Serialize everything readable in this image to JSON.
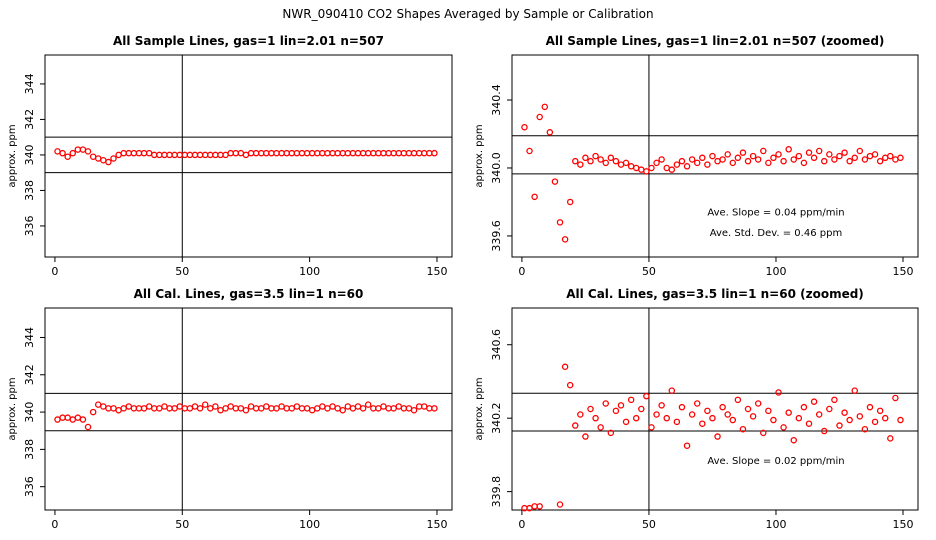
{
  "title": "NWR_090410  CO2 Shapes Averaged by Sample or Calibration",
  "chart_data": [
    {
      "type": "scatter",
      "title": "All Sample Lines, gas=1 lin=2.01 n=507",
      "y_label": "approx. ppm",
      "color": "#ff0000",
      "xlim": [
        -3.9,
        155.9
      ],
      "ylim": [
        334.25,
        345.63
      ],
      "xticks": [
        0,
        50,
        100,
        150
      ],
      "yticks": [
        336,
        338,
        340,
        342,
        344
      ],
      "hlines": [
        341,
        339
      ],
      "vline": 50,
      "annotations": [],
      "x": [
        1,
        3,
        5,
        7,
        9,
        11,
        13,
        15,
        17,
        19,
        21,
        23,
        25,
        27,
        29,
        31,
        33,
        35,
        37,
        39,
        41,
        43,
        45,
        47,
        49,
        51,
        53,
        55,
        57,
        59,
        61,
        63,
        65,
        67,
        69,
        71,
        73,
        75,
        77,
        79,
        81,
        83,
        85,
        87,
        89,
        91,
        93,
        95,
        97,
        99,
        101,
        103,
        105,
        107,
        109,
        111,
        113,
        115,
        117,
        119,
        121,
        123,
        125,
        127,
        129,
        131,
        133,
        135,
        137,
        139,
        141,
        143,
        145,
        147,
        149
      ],
      "values": [
        340.2,
        340.1,
        339.9,
        340.1,
        340.3,
        340.3,
        340.2,
        339.9,
        339.8,
        339.7,
        339.6,
        339.8,
        340.0,
        340.1,
        340.1,
        340.1,
        340.1,
        340.1,
        340.1,
        340.0,
        340.0,
        340.0,
        340.0,
        340.0,
        340.0,
        340.0,
        340.0,
        340.0,
        340.0,
        340.0,
        340.0,
        340.0,
        340.0,
        340.0,
        340.1,
        340.1,
        340.1,
        340.0,
        340.1,
        340.1,
        340.1,
        340.1,
        340.1,
        340.1,
        340.1,
        340.1,
        340.1,
        340.1,
        340.1,
        340.1,
        340.1,
        340.1,
        340.1,
        340.1,
        340.1,
        340.1,
        340.1,
        340.1,
        340.1,
        340.1,
        340.1,
        340.1,
        340.1,
        340.1,
        340.1,
        340.1,
        340.1,
        340.1,
        340.1,
        340.1,
        340.1,
        340.1,
        340.1,
        340.1,
        340.1
      ]
    },
    {
      "type": "scatter",
      "title": "All Sample Lines, gas=1 lin=2.01 n=507 (zoomed)",
      "y_label": "approx. ppm",
      "color": "#ff0000",
      "xlim": [
        -3.9,
        155.9
      ],
      "ylim": [
        339.476,
        340.665
      ],
      "xticks": [
        0,
        50,
        100,
        150
      ],
      "yticks": [
        339.6,
        {
          "value": 340,
          "label": "340.0"
        },
        340.4
      ],
      "hlines": [
        340.19,
        339.965
      ],
      "vline": 50,
      "annotations": [
        {
          "text": "Ave. Slope =  0.04  ppm/min",
          "x": 100,
          "y": 339.72
        },
        {
          "text": "Ave. Std. Dev. =  0.46  ppm",
          "x": 100,
          "y": 339.6
        }
      ],
      "x": [
        1,
        3,
        5,
        7,
        9,
        11,
        13,
        15,
        17,
        19,
        21,
        23,
        25,
        27,
        29,
        31,
        33,
        35,
        37,
        39,
        41,
        43,
        45,
        47,
        49,
        51,
        53,
        55,
        57,
        59,
        61,
        63,
        65,
        67,
        69,
        71,
        73,
        75,
        77,
        79,
        81,
        83,
        85,
        87,
        89,
        91,
        93,
        95,
        97,
        99,
        101,
        103,
        105,
        107,
        109,
        111,
        113,
        115,
        117,
        119,
        121,
        123,
        125,
        127,
        129,
        131,
        133,
        135,
        137,
        139,
        141,
        143,
        145,
        147,
        149
      ],
      "values": [
        340.24,
        340.1,
        339.83,
        340.3,
        340.36,
        340.21,
        339.92,
        339.68,
        339.58,
        339.8,
        340.04,
        340.02,
        340.06,
        340.04,
        340.07,
        340.05,
        340.03,
        340.06,
        340.04,
        340.02,
        340.03,
        340.01,
        340.0,
        339.99,
        339.98,
        340.0,
        340.03,
        340.05,
        340.0,
        339.99,
        340.02,
        340.04,
        340.01,
        340.05,
        340.03,
        340.06,
        340.02,
        340.07,
        340.04,
        340.05,
        340.08,
        340.03,
        340.06,
        340.09,
        340.04,
        340.07,
        340.05,
        340.1,
        340.03,
        340.06,
        340.08,
        340.04,
        340.11,
        340.05,
        340.07,
        340.03,
        340.09,
        340.06,
        340.1,
        340.04,
        340.08,
        340.05,
        340.07,
        340.09,
        340.04,
        340.06,
        340.1,
        340.05,
        340.07,
        340.08,
        340.04,
        340.06,
        340.07,
        340.05,
        340.06
      ]
    },
    {
      "type": "scatter",
      "title": "All Cal. Lines, gas=3.5 lin=1 n=60",
      "y_label": "approx. ppm",
      "color": "#ff0000",
      "xlim": [
        -3.9,
        155.9
      ],
      "ylim": [
        334.75,
        345.58
      ],
      "xticks": [
        0,
        50,
        100,
        150
      ],
      "yticks": [
        336,
        338,
        340,
        342,
        344
      ],
      "hlines": [
        341,
        339
      ],
      "vline": 50,
      "annotations": [],
      "x": [
        1,
        3,
        5,
        7,
        9,
        11,
        13,
        15,
        17,
        19,
        21,
        23,
        25,
        27,
        29,
        31,
        33,
        35,
        37,
        39,
        41,
        43,
        45,
        47,
        49,
        51,
        53,
        55,
        57,
        59,
        61,
        63,
        65,
        67,
        69,
        71,
        73,
        75,
        77,
        79,
        81,
        83,
        85,
        87,
        89,
        91,
        93,
        95,
        97,
        99,
        101,
        103,
        105,
        107,
        109,
        111,
        113,
        115,
        117,
        119,
        121,
        123,
        125,
        127,
        129,
        131,
        133,
        135,
        137,
        139,
        141,
        143,
        145,
        147,
        149
      ],
      "values": [
        339.6,
        339.7,
        339.7,
        339.6,
        339.7,
        339.6,
        339.2,
        340.0,
        340.4,
        340.3,
        340.2,
        340.2,
        340.1,
        340.2,
        340.3,
        340.2,
        340.2,
        340.2,
        340.3,
        340.2,
        340.2,
        340.3,
        340.2,
        340.2,
        340.3,
        340.2,
        340.2,
        340.3,
        340.2,
        340.4,
        340.2,
        340.3,
        340.1,
        340.2,
        340.3,
        340.2,
        340.2,
        340.1,
        340.3,
        340.2,
        340.2,
        340.3,
        340.2,
        340.2,
        340.3,
        340.2,
        340.2,
        340.3,
        340.2,
        340.2,
        340.1,
        340.2,
        340.3,
        340.2,
        340.3,
        340.2,
        340.1,
        340.3,
        340.2,
        340.3,
        340.2,
        340.4,
        340.2,
        340.2,
        340.3,
        340.2,
        340.2,
        340.3,
        340.2,
        340.2,
        340.1,
        340.3,
        340.3,
        340.2,
        340.2
      ]
    },
    {
      "type": "scatter",
      "title": "All Cal. Lines, gas=3.5 lin=1 n=60 (zoomed)",
      "y_label": "approx. ppm",
      "color": "#ff0000",
      "xlim": [
        -3.9,
        155.9
      ],
      "ylim": [
        339.7,
        340.8
      ],
      "xticks": [
        0,
        50,
        100,
        150
      ],
      "yticks": [
        339.8,
        340.2,
        340.6
      ],
      "hlines": [
        340.336,
        340.13
      ],
      "vline": 50,
      "annotations": [
        {
          "text": "Ave. Slope =  0.02  ppm/min",
          "x": 100,
          "y": 339.95
        }
      ],
      "x": [
        1,
        3,
        5,
        7,
        9,
        11,
        13,
        15,
        17,
        19,
        21,
        23,
        25,
        27,
        29,
        31,
        33,
        35,
        37,
        39,
        41,
        43,
        45,
        47,
        49,
        51,
        53,
        55,
        57,
        59,
        61,
        63,
        65,
        67,
        69,
        71,
        73,
        75,
        77,
        79,
        81,
        83,
        85,
        87,
        89,
        91,
        93,
        95,
        97,
        99,
        101,
        103,
        105,
        107,
        109,
        111,
        113,
        115,
        117,
        119,
        121,
        123,
        125,
        127,
        129,
        131,
        133,
        135,
        137,
        139,
        141,
        143,
        145,
        147,
        149
      ],
      "values": [
        339.71,
        339.71,
        339.72,
        339.72,
        null,
        null,
        null,
        339.73,
        340.48,
        340.38,
        340.16,
        340.22,
        340.1,
        340.25,
        340.2,
        340.15,
        340.28,
        340.12,
        340.24,
        340.27,
        340.18,
        340.3,
        340.2,
        340.25,
        340.32,
        340.15,
        340.22,
        340.27,
        340.2,
        340.35,
        340.18,
        340.26,
        340.05,
        340.22,
        340.28,
        340.17,
        340.24,
        340.2,
        340.1,
        340.26,
        340.22,
        340.19,
        340.3,
        340.14,
        340.25,
        340.21,
        340.28,
        340.12,
        340.24,
        340.19,
        340.34,
        340.15,
        340.23,
        340.08,
        340.2,
        340.26,
        340.17,
        340.29,
        340.22,
        340.13,
        340.25,
        340.3,
        340.16,
        340.23,
        340.19,
        340.35,
        340.21,
        340.14,
        340.26,
        340.18,
        340.24,
        340.2,
        340.09,
        340.31,
        340.19
      ]
    }
  ]
}
